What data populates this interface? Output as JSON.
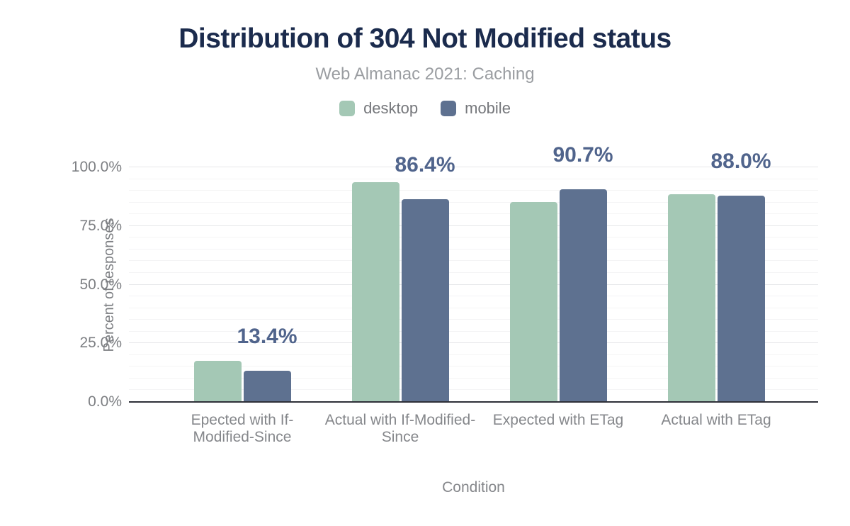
{
  "title": "Distribution of 304 Not Modified status",
  "subtitle": "Web Almanac 2021: Caching",
  "chart_data": {
    "type": "bar",
    "title": "Distribution of 304 Not Modified status",
    "subtitle": "Web Almanac 2021: Caching",
    "categories": [
      "Epected with If-Modified-Since",
      "Actual with If-Modified-Since",
      "Expected with ETag",
      "Actual with ETag"
    ],
    "series": [
      {
        "name": "desktop",
        "color": "#a4c8b5",
        "values": [
          17.5,
          93.7,
          85.2,
          88.5
        ]
      },
      {
        "name": "mobile",
        "color": "#5e7190",
        "values": [
          13.4,
          86.4,
          90.7,
          88.0
        ]
      }
    ],
    "bar_labels": [
      "13.4%",
      "86.4%",
      "90.7%",
      "88.0%"
    ],
    "bar_labels_series": "mobile",
    "bar_label_color": "#50648c",
    "xlabel": "Condition",
    "ylabel": "Percent of responses",
    "ylim": [
      0,
      100
    ],
    "yticks": [
      {
        "label": "0.0%",
        "value": 0
      },
      {
        "label": "25.0%",
        "value": 25
      },
      {
        "label": "50.0%",
        "value": 50
      },
      {
        "label": "75.0%",
        "value": 75
      },
      {
        "label": "100.0%",
        "value": 100
      }
    ],
    "grid": {
      "major_step": 25,
      "minor_step": 5,
      "on": true
    },
    "legend_position": "top",
    "background": "#ffffff",
    "title_color": "#1b2b4d",
    "axis_line_color": "#2e3038"
  }
}
